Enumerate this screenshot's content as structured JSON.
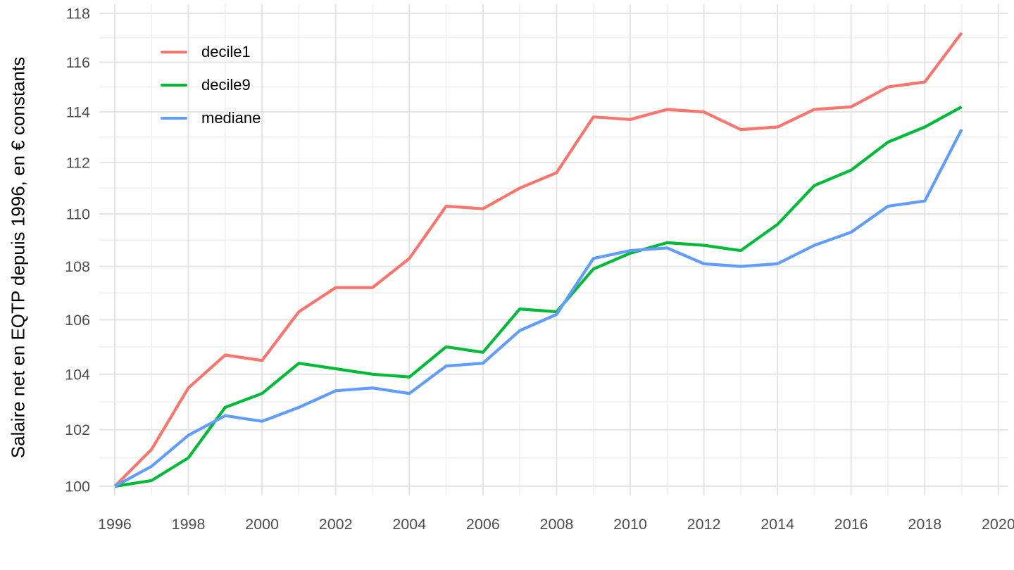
{
  "figure": {
    "background": "#ffffff",
    "tick_label_color": "#4d4d4d",
    "grid_major_color": "#e4e4e4",
    "grid_minor_color": "#f0f0f0"
  },
  "legend": {
    "position": "inside-top-left",
    "items": [
      {
        "label": "decile1",
        "color": "#F8766D"
      },
      {
        "label": "decile9",
        "color": "#00BA38"
      },
      {
        "label": "mediane",
        "color": "#619CFF"
      }
    ]
  },
  "chart_data": {
    "type": "line",
    "title": "",
    "xlabel": "",
    "ylabel": "Salaire net en EQTP depuis 1996, en € constants",
    "y_scale": "log",
    "grid": "major-and-minor",
    "legend_position": "inside-top-left",
    "x": [
      1996,
      1997,
      1998,
      1999,
      2000,
      2001,
      2002,
      2003,
      2004,
      2005,
      2006,
      2007,
      2008,
      2009,
      2010,
      2011,
      2012,
      2013,
      2014,
      2015,
      2016,
      2017,
      2018,
      2019
    ],
    "series": [
      {
        "name": "decile1",
        "color": "#F8766D",
        "values": [
          100,
          101.3,
          103.5,
          104.7,
          104.5,
          106.3,
          107.2,
          107.2,
          108.3,
          110.3,
          110.2,
          111,
          111.6,
          113.8,
          113.7,
          114.1,
          114,
          113.3,
          113.4,
          114.1,
          114.2,
          115,
          115.2,
          117.2
        ]
      },
      {
        "name": "decile9",
        "color": "#00BA38",
        "values": [
          100,
          100.2,
          101,
          102.8,
          103.3,
          104.4,
          104.2,
          104,
          103.9,
          105,
          104.8,
          106.4,
          106.3,
          107.9,
          108.5,
          108.9,
          108.8,
          108.6,
          109.6,
          111.1,
          111.7,
          112.8,
          113.4,
          114.2
        ]
      },
      {
        "name": "mediane",
        "color": "#619CFF",
        "values": [
          100,
          100.7,
          101.8,
          102.5,
          102.3,
          102.8,
          103.4,
          103.5,
          103.3,
          104.3,
          104.4,
          105.6,
          106.2,
          108.3,
          108.6,
          108.7,
          108.1,
          108,
          108.1,
          108.8,
          109.3,
          110.3,
          110.5,
          113.3
        ]
      }
    ],
    "x_ticks": [
      1996,
      1998,
      2000,
      2002,
      2004,
      2006,
      2008,
      2010,
      2012,
      2014,
      2016,
      2018,
      2020
    ],
    "x_minor_ticks": [
      1997,
      1999,
      2001,
      2003,
      2005,
      2007,
      2009,
      2011,
      2013,
      2015,
      2017,
      2019
    ],
    "y_ticks": [
      100,
      102,
      104,
      106,
      108,
      110,
      112,
      114,
      116,
      118
    ],
    "y_minor_ticks": [
      101,
      103,
      105,
      107,
      109,
      111,
      113,
      115,
      117
    ],
    "xlim": [
      1995.58,
      2020.27
    ],
    "ylim": [
      99.68,
      118.38
    ]
  }
}
